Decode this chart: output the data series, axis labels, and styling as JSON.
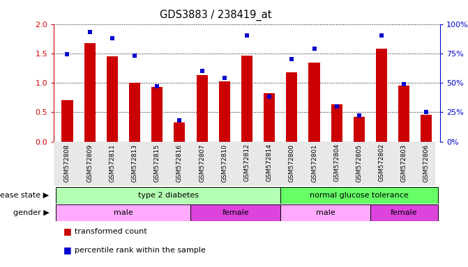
{
  "title": "GDS3883 / 238419_at",
  "samples": [
    "GSM572808",
    "GSM572809",
    "GSM572811",
    "GSM572813",
    "GSM572815",
    "GSM572816",
    "GSM572807",
    "GSM572810",
    "GSM572812",
    "GSM572814",
    "GSM572800",
    "GSM572801",
    "GSM572804",
    "GSM572805",
    "GSM572802",
    "GSM572803",
    "GSM572806"
  ],
  "red_values": [
    0.7,
    1.68,
    1.45,
    1.0,
    0.93,
    0.33,
    1.13,
    1.02,
    1.46,
    0.82,
    1.18,
    1.34,
    0.63,
    0.42,
    1.58,
    0.95,
    0.46
  ],
  "blue_values": [
    74,
    93,
    88,
    73,
    47,
    18,
    60,
    54,
    90,
    38,
    70,
    79,
    30,
    22,
    90,
    49,
    25
  ],
  "red_color": "#cc0000",
  "blue_color": "#0000cc",
  "ylim_left": [
    0,
    2.0
  ],
  "ylim_right": [
    0,
    100
  ],
  "yticks_left": [
    0,
    0.5,
    1.0,
    1.5,
    2.0
  ],
  "yticks_right": [
    0,
    25,
    50,
    75,
    100
  ],
  "disease_color_t2d": "#b3ffb3",
  "disease_color_ngt": "#66ff66",
  "gender_color_male": "#ffaaff",
  "gender_color_female": "#dd44dd",
  "bar_width": 0.5,
  "background_color": "#ffffff",
  "plot_bg": "#ffffff",
  "tick_label_bg": "#e8e8e8"
}
